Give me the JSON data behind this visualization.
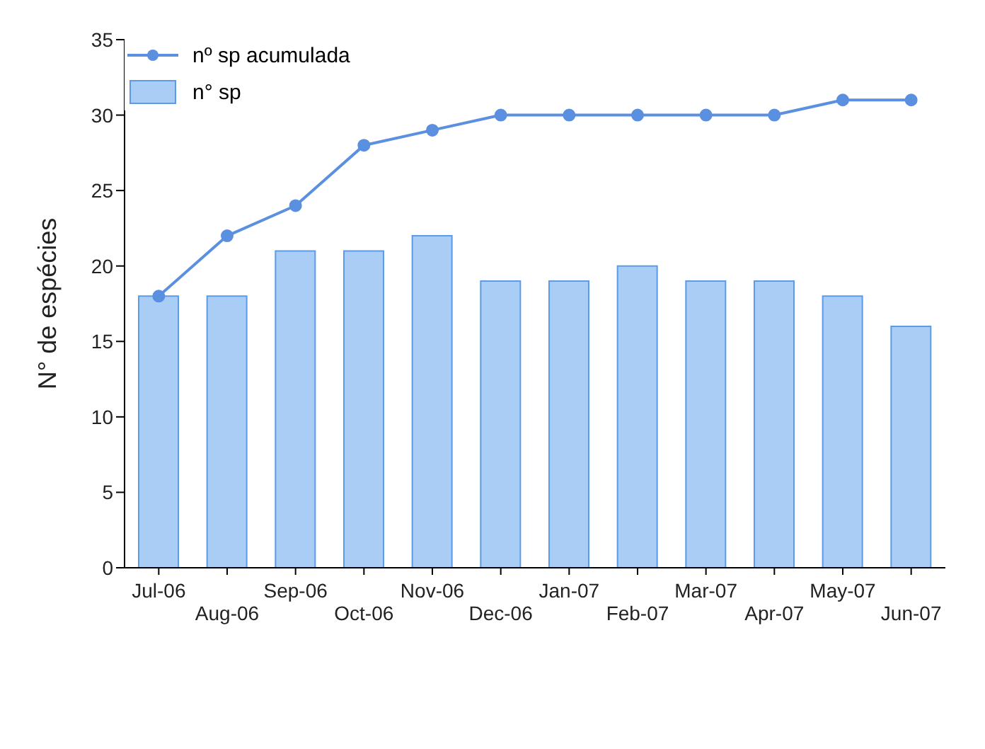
{
  "chart_data": {
    "type": "bar",
    "ylabel": "N° de espécies",
    "categories": [
      "Jul-06",
      "Aug-06",
      "Sep-06",
      "Oct-06",
      "Nov-06",
      "Dec-06",
      "Jan-07",
      "Feb-07",
      "Mar-07",
      "Apr-07",
      "May-07",
      "Jun-07"
    ],
    "series": [
      {
        "name": "nº sp acumulada",
        "type": "line",
        "color": "#5b8fe0",
        "values": [
          18,
          22,
          24,
          28,
          29,
          30,
          30,
          30,
          30,
          30,
          31,
          31
        ]
      },
      {
        "name": "n° sp",
        "color": "#a9cdf5",
        "values": [
          18,
          18,
          21,
          21,
          22,
          19,
          19,
          20,
          19,
          19,
          18,
          16
        ]
      }
    ],
    "ylim": [
      0,
      35
    ],
    "yticks": [
      0,
      5,
      10,
      15,
      20,
      25,
      30,
      35
    ],
    "grid": false,
    "legend": "top left",
    "marker": "circle",
    "line_style": "solid"
  }
}
